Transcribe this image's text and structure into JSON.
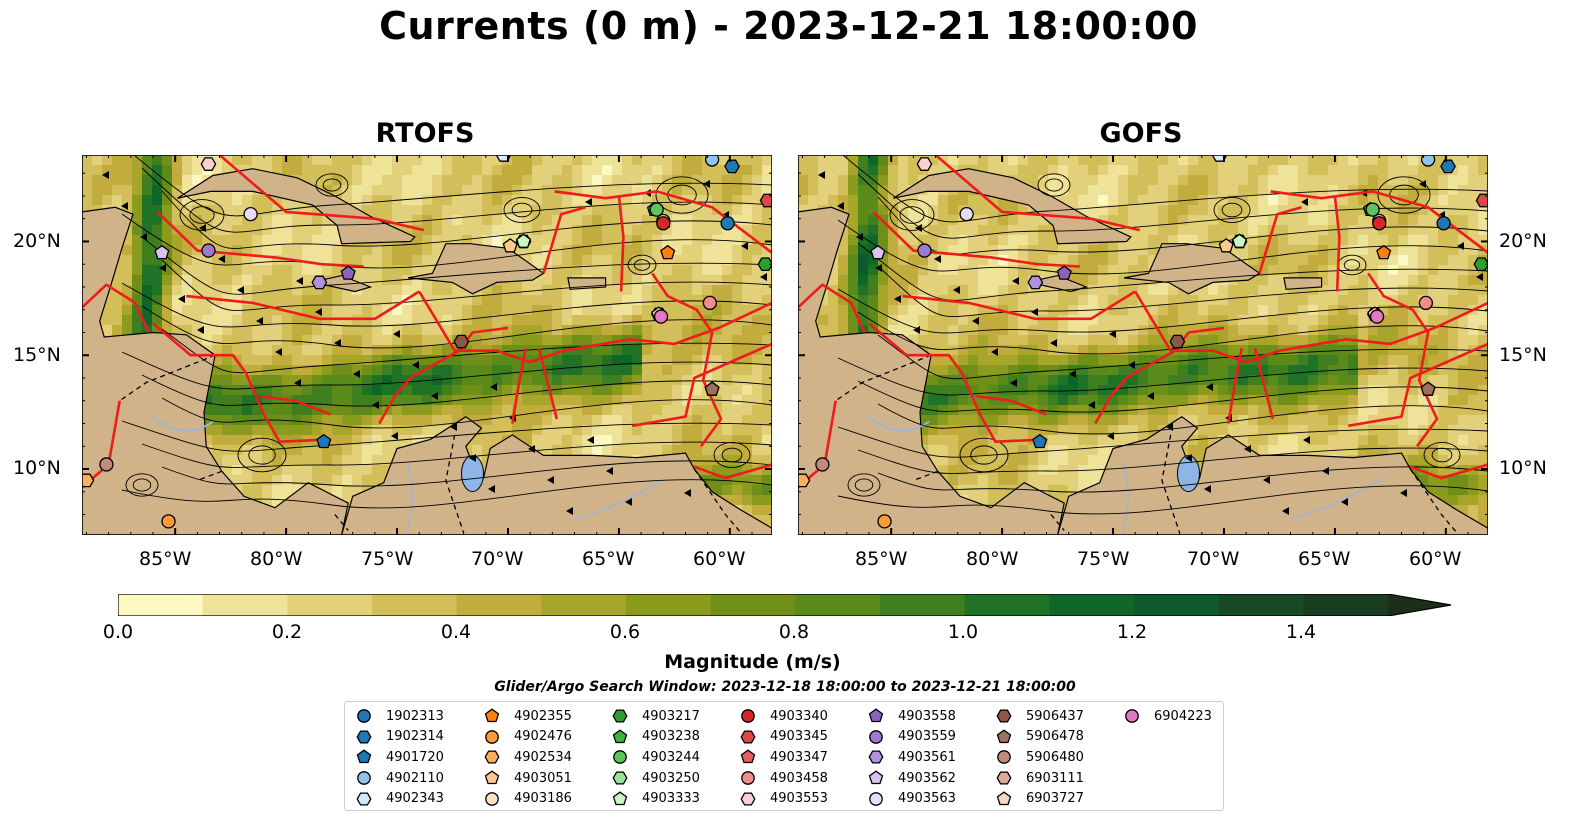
{
  "title": "Currents (0 m) - 2023-12-21 18:00:00",
  "panels": [
    {
      "id": "rtofs",
      "title": "RTOFS"
    },
    {
      "id": "gofs",
      "title": "GOFS"
    }
  ],
  "lat_ticks": [
    "20°N",
    "15°N",
    "10°N"
  ],
  "lon_ticks": [
    "85°W",
    "80°W",
    "75°W",
    "70°W",
    "65°W",
    "60°W"
  ],
  "map_extent": {
    "lon_min": -89.2,
    "lon_max": -58.1,
    "lat_min": 7.1,
    "lat_max": 23.8
  },
  "colorbar": {
    "label": "Magnitude (m/s)",
    "ticks": [
      "0.0",
      "0.2",
      "0.4",
      "0.6",
      "0.8",
      "1.0",
      "1.2",
      "1.4"
    ],
    "extend": "max",
    "colors": [
      "#fdf8c4",
      "#efe39a",
      "#e3d07a",
      "#d3bf5a",
      "#c2ac3e",
      "#a8a52b",
      "#8a9b1e",
      "#6f8f19",
      "#5a8a1a",
      "#3f7f1f",
      "#207326",
      "#0f6629",
      "#0d5a2a",
      "#154a25",
      "#1a3d22",
      "#1b2f1a"
    ]
  },
  "search_window": "Glider/Argo Search Window: 2023-12-18 18:00:00 to 2023-12-21 18:00:00",
  "legend": [
    {
      "label": "1902313",
      "marker": "circle",
      "color": "#1f77b4"
    },
    {
      "label": "1902314",
      "marker": "hexagon",
      "color": "#1f77b4"
    },
    {
      "label": "4901720",
      "marker": "pentagon",
      "color": "#1f77b4"
    },
    {
      "label": "4902110",
      "marker": "circle",
      "color": "#8fc3ea"
    },
    {
      "label": "4902343",
      "marker": "hexagon",
      "color": "#d6ebf7"
    },
    {
      "label": "4902355",
      "marker": "pentagon",
      "color": "#ff7f0e"
    },
    {
      "label": "4902476",
      "marker": "circle",
      "color": "#ff9a3a"
    },
    {
      "label": "4902534",
      "marker": "hexagon",
      "color": "#ffae5e"
    },
    {
      "label": "4903051",
      "marker": "pentagon",
      "color": "#ffcb8c"
    },
    {
      "label": "4903186",
      "marker": "circle",
      "color": "#ffe1c2"
    },
    {
      "label": "4903217",
      "marker": "hexagon",
      "color": "#2ca02c"
    },
    {
      "label": "4903238",
      "marker": "pentagon",
      "color": "#3fb13f"
    },
    {
      "label": "4903244",
      "marker": "circle",
      "color": "#5cc65c"
    },
    {
      "label": "4903250",
      "marker": "hexagon",
      "color": "#9be39b"
    },
    {
      "label": "4903333",
      "marker": "pentagon",
      "color": "#c8f5c2"
    },
    {
      "label": "4903340",
      "marker": "circle",
      "color": "#d62728"
    },
    {
      "label": "4903345",
      "marker": "hexagon",
      "color": "#de4748"
    },
    {
      "label": "4903347",
      "marker": "pentagon",
      "color": "#e45f5f"
    },
    {
      "label": "4903458",
      "marker": "circle",
      "color": "#f08c8c"
    },
    {
      "label": "4903553",
      "marker": "hexagon",
      "color": "#fbd0d0"
    },
    {
      "label": "4903558",
      "marker": "pentagon",
      "color": "#8c63bd"
    },
    {
      "label": "4903559",
      "marker": "circle",
      "color": "#9f78d0"
    },
    {
      "label": "4903561",
      "marker": "hexagon",
      "color": "#b191dc"
    },
    {
      "label": "4903562",
      "marker": "pentagon",
      "color": "#d8c3f0"
    },
    {
      "label": "4903563",
      "marker": "circle",
      "color": "#eadcf8"
    },
    {
      "label": "5906437",
      "marker": "hexagon",
      "color": "#8c564b"
    },
    {
      "label": "5906478",
      "marker": "pentagon",
      "color": "#a0705f"
    },
    {
      "label": "5906480",
      "marker": "circle",
      "color": "#c08b7a"
    },
    {
      "label": "6903111",
      "marker": "hexagon",
      "color": "#d9ab99"
    },
    {
      "label": "6903727",
      "marker": "pentagon",
      "color": "#f6d6c5"
    },
    {
      "label": "6904223",
      "marker": "circle",
      "color": "#e377c2"
    }
  ]
}
